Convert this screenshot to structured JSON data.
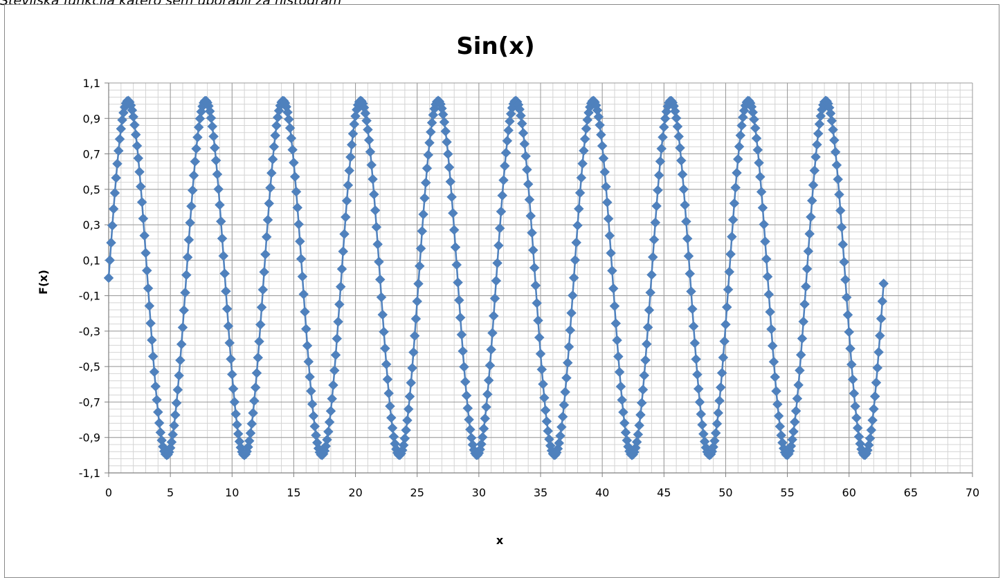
{
  "caption": "Številska funkcija katero sem uporabil za histogram",
  "chart_data": {
    "type": "line",
    "title": "Sin(x)",
    "xlabel": "x",
    "ylabel": "F(x)",
    "xlim": [
      0,
      70
    ],
    "ylim": [
      -1.1,
      1.1
    ],
    "x_major_step": 5,
    "x_minor_step": 1,
    "y_major_step": 0.2,
    "y_minor_step": 0.04,
    "x_tick_labels": [
      "0",
      "5",
      "10",
      "15",
      "20",
      "25",
      "30",
      "35",
      "40",
      "45",
      "50",
      "55",
      "60",
      "65",
      "70"
    ],
    "y_tick_labels": [
      "1,1",
      "0,9",
      "0,7",
      "0,5",
      "0,3",
      "0,1",
      "-0,1",
      "-0,3",
      "-0,5",
      "-0,7",
      "-0,9",
      "-1,1"
    ],
    "grid": true,
    "legend": "none",
    "series": [
      {
        "function": "sin(x)",
        "x_start": 0,
        "x_end": 62.8,
        "x_step": 0.1,
        "marker": "diamond",
        "color": "#4F81BD"
      }
    ]
  }
}
